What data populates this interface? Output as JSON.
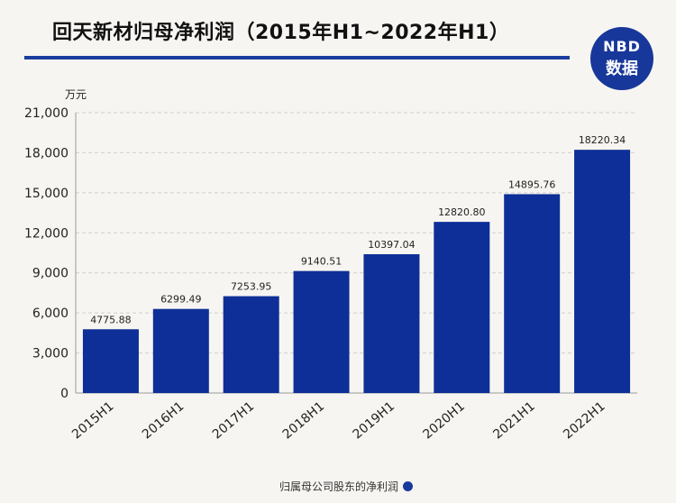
{
  "title": "回天新材归母净利润（2015年H1~2022年H1）",
  "logo": {
    "line1": "NBD",
    "line2": "数据"
  },
  "colors": {
    "bar": "#0d2f97",
    "accent": "#1a3e9e",
    "grid": "#cfcfcf"
  },
  "chart_data": {
    "type": "bar",
    "unit_label": "万元",
    "categories": [
      "2015H1",
      "2016H1",
      "2017H1",
      "2018H1",
      "2019H1",
      "2020H1",
      "2021H1",
      "2022H1"
    ],
    "values": [
      4775.88,
      6299.49,
      7253.95,
      9140.51,
      10397.04,
      12820.8,
      14895.76,
      18220.34
    ],
    "value_labels": [
      "4775.88",
      "6299.49",
      "7253.95",
      "9140.51",
      "10397.04",
      "12820.80",
      "14895.76",
      "18220.34"
    ],
    "ylim": [
      0,
      21000
    ],
    "yticks": [
      0,
      3000,
      6000,
      9000,
      12000,
      15000,
      18000,
      21000
    ],
    "ytick_labels": [
      "0",
      "3,000",
      "6,000",
      "9,000",
      "12,000",
      "15,000",
      "18,000",
      "21,000"
    ],
    "grid": true,
    "legend_position": "bottom-center",
    "legend": "归属母公司股东的净利润"
  }
}
